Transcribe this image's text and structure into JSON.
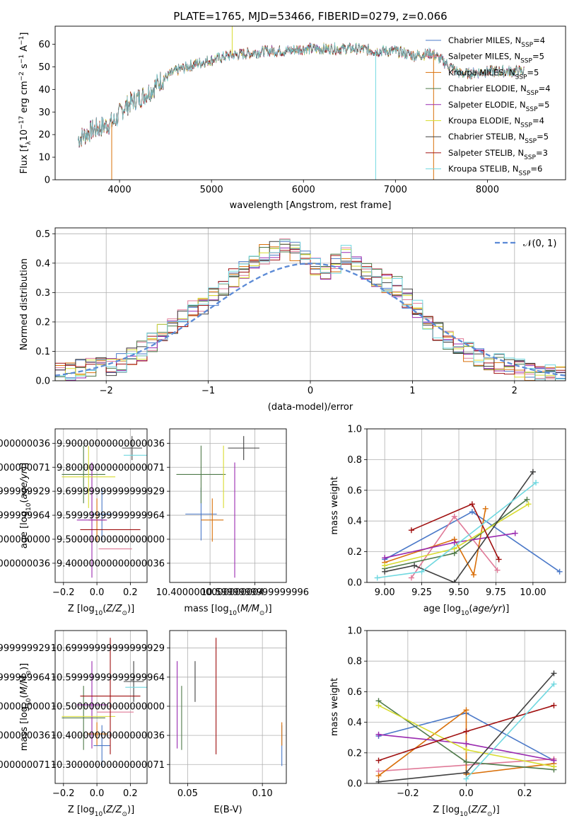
{
  "figure_title": "PLATE=1765, MJD=53466, FIBERID=0279, z=0.066",
  "colors": {
    "Chabrier MILES": "#4a78c8",
    "Salpeter MILES": "#e07a98",
    "Kroupa MILES": "#d9700a",
    "Chabrier ELODIE": "#4f7a4a",
    "Salpeter ELODIE": "#9a2ab0",
    "Kroupa ELODIE": "#d8dc30",
    "Chabrier STELIB": "#404040",
    "Salpeter STELIB": "#a01010",
    "Kroupa STELIB": "#70d8e0",
    "normal_curve": "#5b8ad6"
  },
  "chart_data": [
    {
      "id": "spectrum",
      "type": "line",
      "title": "PLATE=1765, MJD=53466, FIBERID=0279, z=0.066",
      "xlabel": "wavelength [Angstrom, rest frame]",
      "ylabel": "Flux [f_λ 10^-17 erg cm^-2 s^-1 A^-1]",
      "xlim": [
        3300,
        8850
      ],
      "ylim": [
        0,
        68
      ],
      "xticks": [
        4000,
        5000,
        6000,
        7000,
        8000
      ],
      "yticks": [
        0,
        10,
        20,
        30,
        40,
        50,
        60
      ],
      "grid": false,
      "legend_position": "upper-right",
      "series_labels": [
        "Chabrier MILES, N_SSP=4",
        "Salpeter MILES, N_SSP=5",
        "Kroupa MILES, N_SSP=5",
        "Chabrier ELODIE, N_SSP=4",
        "Salpeter ELODIE, N_SSP=5",
        "Kroupa ELODIE, N_SSP=4",
        "Chabrier STELIB, N_SSP=5",
        "Salpeter STELIB, N_SSP=3",
        "Kroupa STELIB, N_SSP=6"
      ],
      "continuum": {
        "x": [
          3550,
          3700,
          3850,
          3950,
          4050,
          4150,
          4250,
          4350,
          4450,
          4600,
          4800,
          5000,
          5200,
          5400,
          5600,
          5800,
          6000,
          6200,
          6400,
          6600,
          6800,
          7000,
          7200,
          7400,
          7600,
          7700,
          7800,
          8000,
          8200,
          8400
        ],
        "y": [
          18,
          22,
          24,
          26,
          32,
          35,
          37,
          40,
          44,
          48,
          51,
          53,
          55,
          56,
          57,
          57,
          58,
          58,
          58,
          58,
          57,
          57,
          55,
          56,
          50,
          47,
          47,
          48,
          48,
          48
        ]
      },
      "spikes": [
        {
          "x": 3915,
          "y": 0
        },
        {
          "x": 5225,
          "y": 68
        },
        {
          "x": 6785,
          "y": 0
        },
        {
          "x": 7415,
          "y": 0
        }
      ]
    },
    {
      "id": "residuals",
      "type": "line",
      "xlabel": "(data-model)/error",
      "ylabel": "Normed distribution",
      "xlim": [
        -2.5,
        2.5
      ],
      "ylim": [
        0,
        0.52
      ],
      "xticks": [
        -2,
        -1,
        0,
        1,
        2
      ],
      "yticks": [
        0.0,
        0.1,
        0.2,
        0.3,
        0.4,
        0.5
      ],
      "grid": true,
      "legend": "𝒩(0, 1)",
      "legend_position": "upper-right",
      "bin_width": 0.1,
      "hist_centers": [
        -2.45,
        -2.35,
        -2.25,
        -2.15,
        -2.05,
        -1.95,
        -1.85,
        -1.75,
        -1.65,
        -1.55,
        -1.45,
        -1.35,
        -1.25,
        -1.15,
        -1.05,
        -0.95,
        -0.85,
        -0.75,
        -0.65,
        -0.55,
        -0.45,
        -0.35,
        -0.25,
        -0.15,
        -0.05,
        0.05,
        0.15,
        0.25,
        0.35,
        0.45,
        0.55,
        0.65,
        0.75,
        0.85,
        0.95,
        1.05,
        1.15,
        1.25,
        1.35,
        1.45,
        1.55,
        1.65,
        1.75,
        1.85,
        1.95,
        2.05,
        2.15,
        2.25,
        2.35,
        2.45
      ],
      "hist_base": [
        0.025,
        0.03,
        0.04,
        0.045,
        0.05,
        0.045,
        0.06,
        0.08,
        0.1,
        0.13,
        0.16,
        0.18,
        0.21,
        0.24,
        0.26,
        0.29,
        0.31,
        0.35,
        0.38,
        0.41,
        0.43,
        0.44,
        0.45,
        0.44,
        0.42,
        0.39,
        0.36,
        0.4,
        0.43,
        0.4,
        0.37,
        0.35,
        0.33,
        0.32,
        0.28,
        0.25,
        0.21,
        0.17,
        0.14,
        0.12,
        0.1,
        0.08,
        0.07,
        0.06,
        0.055,
        0.04,
        0.035,
        0.03,
        0.025,
        0.02
      ],
      "normal_curve": {
        "mean": 0,
        "sigma": 1
      }
    },
    {
      "id": "age_vs_Z",
      "type": "scatter",
      "xlabel": "Z [log10(Z/Z⊙)]",
      "ylabel": "age [log10(age/yr)]",
      "xlim": [
        -0.25,
        0.3
      ],
      "ylim": [
        9.32,
        9.96
      ],
      "xticks": [
        -0.2,
        0.0,
        0.2
      ],
      "yticks": [
        9.4,
        9.5,
        9.6,
        9.7,
        9.8,
        9.9
      ],
      "grid": true,
      "points": [
        {
          "x": 0.03,
          "xerr": 0.06,
          "y": 9.605,
          "yerr": 0.11,
          "color": "#4a78c8"
        },
        {
          "x": 0.11,
          "xerr": 0.1,
          "y": 9.46,
          "yerr": 0.0,
          "color": "#e07a98"
        },
        {
          "x": 0.0,
          "xerr": 0.05,
          "y": 9.58,
          "yerr": 0.09,
          "color": "#d9700a"
        },
        {
          "x": -0.08,
          "xerr": 0.13,
          "y": 9.77,
          "yerr": 0.12,
          "color": "#4f7a4a"
        },
        {
          "x": -0.03,
          "xerr": 0.09,
          "y": 9.58,
          "yerr": 0.24,
          "color": "#9a2ab0"
        },
        {
          "x": -0.05,
          "xerr": 0.16,
          "y": 9.76,
          "yerr": 0.13,
          "color": "#d8dc30"
        },
        {
          "x": 0.21,
          "xerr": 0.06,
          "y": 9.88,
          "yerr": 0.05,
          "color": "#404040"
        },
        {
          "x": 0.08,
          "xerr": 0.18,
          "y": 9.54,
          "yerr": 0.0,
          "color": "#a01010"
        },
        {
          "x": 0.23,
          "xerr": 0.07,
          "y": 9.85,
          "yerr": 0.0,
          "color": "#70d8e0"
        }
      ]
    },
    {
      "id": "age_vs_mass",
      "type": "scatter",
      "xlabel": "mass [log10(M/M⊙)]",
      "ylabel": "",
      "xlim": [
        10.22,
        10.74
      ],
      "ylim": [
        9.32,
        9.96
      ],
      "xticks": [
        10.4,
        10.6
      ],
      "yticks": [
        9.4,
        9.5,
        9.6,
        9.7,
        9.8,
        9.9
      ],
      "grid": true,
      "points": [
        {
          "x": 10.36,
          "xerr": 0.07,
          "y": 9.605,
          "yerr": 0.11,
          "color": "#4a78c8"
        },
        {
          "x": 10.48,
          "xerr": 0.0,
          "y": 9.46,
          "yerr": 0.0,
          "color": "#e07a98"
        },
        {
          "x": 10.41,
          "xerr": 0.05,
          "y": 9.58,
          "yerr": 0.09,
          "color": "#d9700a"
        },
        {
          "x": 10.36,
          "xerr": 0.11,
          "y": 9.77,
          "yerr": 0.12,
          "color": "#4f7a4a"
        },
        {
          "x": 10.51,
          "xerr": 0.0,
          "y": 9.58,
          "yerr": 0.24,
          "color": "#9a2ab0"
        },
        {
          "x": 10.46,
          "xerr": 0.0,
          "y": 9.76,
          "yerr": 0.13,
          "color": "#d8dc30"
        },
        {
          "x": 10.55,
          "xerr": 0.07,
          "y": 9.88,
          "yerr": 0.05,
          "color": "#404040"
        },
        {
          "x": 10.54,
          "xerr": 0.0,
          "y": 9.54,
          "yerr": 0.0,
          "color": "#a01010"
        },
        {
          "x": 10.55,
          "xerr": 0.0,
          "y": 9.85,
          "yerr": 0.0,
          "color": "#70d8e0"
        }
      ]
    },
    {
      "id": "mass_weight_vs_age",
      "type": "line",
      "xlabel": "age [log10(age/yr)]",
      "ylabel": "mass weight",
      "xlim": [
        8.88,
        10.22
      ],
      "ylim": [
        0.0,
        1.0
      ],
      "xticks": [
        9.0,
        9.25,
        9.5,
        9.75,
        10.0
      ],
      "yticks": [
        0.0,
        0.2,
        0.4,
        0.6,
        0.8,
        1.0
      ],
      "grid": true,
      "series": [
        {
          "color": "#4a78c8",
          "x": [
            9.0,
            9.59,
            10.18
          ],
          "y": [
            0.15,
            0.46,
            0.07
          ]
        },
        {
          "color": "#e07a98",
          "x": [
            9.18,
            9.47,
            9.76
          ],
          "y": [
            0.03,
            0.43,
            0.08
          ]
        },
        {
          "color": "#d9700a",
          "x": [
            9.0,
            9.47,
            9.6,
            9.68
          ],
          "y": [
            0.13,
            0.28,
            0.05,
            0.48
          ]
        },
        {
          "color": "#4f7a4a",
          "x": [
            9.0,
            9.47,
            9.96
          ],
          "y": [
            0.09,
            0.19,
            0.54
          ]
        },
        {
          "color": "#9a2ab0",
          "x": [
            9.0,
            9.47,
            9.88
          ],
          "y": [
            0.16,
            0.26,
            0.32
          ]
        },
        {
          "color": "#d8dc30",
          "x": [
            9.0,
            9.47,
            9.97
          ],
          "y": [
            0.11,
            0.22,
            0.51
          ]
        },
        {
          "color": "#404040",
          "x": [
            9.0,
            9.2,
            9.47,
            10.0
          ],
          "y": [
            0.07,
            0.11,
            0.0,
            0.72
          ]
        },
        {
          "color": "#a01010",
          "x": [
            9.18,
            9.59,
            9.77
          ],
          "y": [
            0.34,
            0.51,
            0.15
          ]
        },
        {
          "color": "#70d8e0",
          "x": [
            8.95,
            9.25,
            10.02
          ],
          "y": [
            0.03,
            0.07,
            0.65
          ]
        }
      ]
    },
    {
      "id": "mass_vs_Z",
      "type": "scatter",
      "xlabel": "Z [log10(Z/Z⊙)]",
      "ylabel": "mass [log10(M/M⊙)]",
      "xlim": [
        -0.25,
        0.3
      ],
      "ylim": [
        10.235,
        10.76
      ],
      "xticks": [
        -0.2,
        0.0,
        0.2
      ],
      "yticks": [
        10.3,
        10.4,
        10.5,
        10.6,
        10.7
      ],
      "grid": true,
      "points": [
        {
          "x": 0.03,
          "xerr": 0.05,
          "y": 10.365,
          "yerr": 0.07,
          "color": "#4a78c8"
        },
        {
          "x": 0.11,
          "xerr": 0.11,
          "y": 10.48,
          "yerr": 0.0,
          "color": "#e07a98"
        },
        {
          "x": 0.0,
          "xerr": 0.06,
          "y": 10.405,
          "yerr": 0.04,
          "color": "#d9700a"
        },
        {
          "x": -0.08,
          "xerr": 0.13,
          "y": 10.46,
          "yerr": 0.11,
          "color": "#4f7a4a"
        },
        {
          "x": -0.03,
          "xerr": 0.09,
          "y": 10.505,
          "yerr": 0.15,
          "color": "#9a2ab0"
        },
        {
          "x": -0.05,
          "xerr": 0.16,
          "y": 10.465,
          "yerr": 0.0,
          "color": "#d8dc30"
        },
        {
          "x": 0.22,
          "xerr": 0.06,
          "y": 10.585,
          "yerr": 0.07,
          "color": "#404040"
        },
        {
          "x": 0.08,
          "xerr": 0.18,
          "y": 10.535,
          "yerr": 0.2,
          "color": "#a01010"
        },
        {
          "x": 0.24,
          "xerr": 0.07,
          "y": 10.565,
          "yerr": 0.0,
          "color": "#70d8e0"
        }
      ]
    },
    {
      "id": "mass_vs_EBV",
      "type": "scatter",
      "xlabel": "E(B-V)",
      "ylabel": "",
      "xlim": [
        0.038,
        0.116
      ],
      "ylim": [
        10.235,
        10.76
      ],
      "xticks": [
        0.05,
        0.1
      ],
      "yticks": [
        10.3,
        10.4,
        10.5,
        10.6,
        10.7
      ],
      "grid": true,
      "points": [
        {
          "x": 0.113,
          "xerr": 0.0,
          "y": 10.365,
          "yerr": 0.07,
          "color": "#4a78c8"
        },
        {
          "x": 0.104,
          "xerr": 0.0,
          "y": 10.48,
          "yerr": 0.0,
          "color": "#e07a98"
        },
        {
          "x": 0.113,
          "xerr": 0.0,
          "y": 10.405,
          "yerr": 0.04,
          "color": "#d9700a"
        },
        {
          "x": 0.046,
          "xerr": 0.0,
          "y": 10.46,
          "yerr": 0.11,
          "color": "#4f7a4a"
        },
        {
          "x": 0.043,
          "xerr": 0.0,
          "y": 10.505,
          "yerr": 0.15,
          "color": "#9a2ab0"
        },
        {
          "x": 0.048,
          "xerr": 0.0,
          "y": 10.465,
          "yerr": 0.0,
          "color": "#d8dc30"
        },
        {
          "x": 0.055,
          "xerr": 0.0,
          "y": 10.585,
          "yerr": 0.07,
          "color": "#404040"
        },
        {
          "x": 0.069,
          "xerr": 0.0,
          "y": 10.535,
          "yerr": 0.2,
          "color": "#a01010"
        },
        {
          "x": 0.075,
          "xerr": 0.0,
          "y": 10.565,
          "yerr": 0.0,
          "color": "#70d8e0"
        }
      ]
    },
    {
      "id": "mass_weight_vs_Z",
      "type": "line",
      "xlabel": "Z [log10(Z/Z⊙)]",
      "ylabel": "mass weight",
      "xlim": [
        -0.34,
        0.34
      ],
      "ylim": [
        0.0,
        1.0
      ],
      "xticks": [
        -0.2,
        0.0,
        0.2
      ],
      "yticks": [
        0.0,
        0.2,
        0.4,
        0.6,
        0.8,
        1.0
      ],
      "grid": true,
      "series": [
        {
          "color": "#4a78c8",
          "x": [
            -0.3,
            0.0,
            0.3
          ],
          "y": [
            0.31,
            0.46,
            0.15
          ]
        },
        {
          "color": "#e07a98",
          "x": [
            -0.3,
            0.0,
            0.3
          ],
          "y": [
            0.08,
            0.12,
            0.16
          ]
        },
        {
          "color": "#d9700a",
          "x": [
            -0.3,
            0.0,
            0.0,
            0.3
          ],
          "y": [
            0.05,
            0.48,
            0.06,
            0.13
          ]
        },
        {
          "color": "#4f7a4a",
          "x": [
            -0.3,
            0.0,
            0.3
          ],
          "y": [
            0.54,
            0.14,
            0.09
          ]
        },
        {
          "color": "#9a2ab0",
          "x": [
            -0.3,
            0.0,
            0.3
          ],
          "y": [
            0.32,
            0.26,
            0.15
          ]
        },
        {
          "color": "#d8dc30",
          "x": [
            -0.3,
            0.0,
            0.3
          ],
          "y": [
            0.51,
            0.22,
            0.11
          ]
        },
        {
          "color": "#404040",
          "x": [
            -0.3,
            0.0,
            0.3
          ],
          "y": [
            0.01,
            0.07,
            0.72
          ]
        },
        {
          "color": "#a01010",
          "x": [
            -0.3,
            0.0,
            0.3
          ],
          "y": [
            0.15,
            0.34,
            0.51
          ]
        },
        {
          "color": "#70d8e0",
          "x": [
            0.0,
            0.3
          ],
          "y": [
            0.03,
            0.65
          ]
        }
      ]
    }
  ]
}
